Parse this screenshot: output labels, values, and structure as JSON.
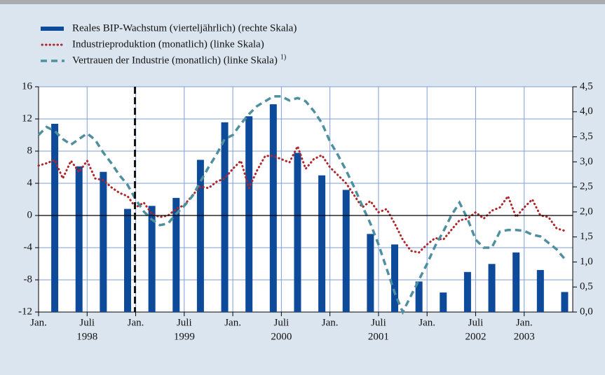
{
  "chart_data": {
    "type": "bar",
    "xlim": [
      "1998-01",
      "2003-07"
    ],
    "xticks": [
      {
        "value": "1998-01",
        "label": "Jan."
      },
      {
        "value": "1998-07",
        "label": "Juli"
      },
      {
        "value": "1999-01",
        "label": "Jan."
      },
      {
        "value": "1999-07",
        "label": "Juli"
      },
      {
        "value": "2000-01",
        "label": "Jan."
      },
      {
        "value": "2000-07",
        "label": "Juli"
      },
      {
        "value": "2001-01",
        "label": "Jan."
      },
      {
        "value": "2001-07",
        "label": "Juli"
      },
      {
        "value": "2002-01",
        "label": "Jan."
      },
      {
        "value": "2002-07",
        "label": "Juli"
      },
      {
        "value": "2003-01",
        "label": "Jan."
      }
    ],
    "x_year_labels": [
      {
        "value": "1998-07",
        "label": "1998"
      },
      {
        "value": "1999-07",
        "label": "1999"
      },
      {
        "value": "2000-07",
        "label": "2000"
      },
      {
        "value": "2001-07",
        "label": "2001"
      },
      {
        "value": "2002-07",
        "label": "2002"
      },
      {
        "value": "2003-01",
        "label": "2003"
      }
    ],
    "ylim": [
      -12,
      16
    ],
    "yticks": [
      -12,
      -8,
      -4,
      0,
      4,
      8,
      12,
      16
    ],
    "y2lim": [
      0,
      4.5
    ],
    "y2ticks": [
      {
        "value": 0,
        "label": "0,0"
      },
      {
        "value": 0.5,
        "label": "0,5"
      },
      {
        "value": 1,
        "label": "1,0"
      },
      {
        "value": 1.5,
        "label": "1,5"
      },
      {
        "value": 2,
        "label": "2,0"
      },
      {
        "value": 2.5,
        "label": "2,5"
      },
      {
        "value": 3,
        "label": "3,0"
      },
      {
        "value": 3.5,
        "label": "3,5"
      },
      {
        "value": 4,
        "label": "4,0"
      },
      {
        "value": 4.5,
        "label": "4,5"
      }
    ],
    "grid": true,
    "series": [
      {
        "name": "Reales BIP-Wachstum (vierteljährlich) (rechte Skala)",
        "type": "bar",
        "axis": "y2",
        "color": "#0d4a9a",
        "x": [
          "1998-Q1",
          "1998-Q2",
          "1998-Q3",
          "1998-Q4",
          "1999-Q1",
          "1999-Q2",
          "1999-Q3",
          "1999-Q4",
          "2000-Q1",
          "2000-Q2",
          "2000-Q3",
          "2000-Q4",
          "2001-Q1",
          "2001-Q2",
          "2001-Q3",
          "2001-Q4",
          "2002-Q1",
          "2002-Q2",
          "2002-Q3",
          "2002-Q4",
          "2003-Q1",
          "2003-Q2"
        ],
        "values": [
          3.76,
          2.91,
          2.8,
          2.06,
          2.12,
          2.28,
          3.04,
          3.79,
          3.91,
          4.15,
          3.18,
          2.73,
          2.44,
          1.56,
          1.35,
          0.61,
          0.39,
          0.8,
          0.96,
          1.19,
          0.84,
          0.4
        ]
      },
      {
        "name": "Industrieproduktion (monatlich) (linke Skala)",
        "type": "dotted",
        "color": "#b0262a",
        "x": [
          "1998-01",
          "1998-02",
          "1998-03",
          "1998-04",
          "1998-05",
          "1998-06",
          "1998-07",
          "1998-08",
          "1998-09",
          "1998-10",
          "1998-11",
          "1998-12",
          "1999-01",
          "1999-02",
          "1999-03",
          "1999-04",
          "1999-05",
          "1999-06",
          "1999-07",
          "1999-08",
          "1999-09",
          "1999-10",
          "1999-11",
          "1999-12",
          "2000-01",
          "2000-02",
          "2000-03",
          "2000-04",
          "2000-05",
          "2000-06",
          "2000-07",
          "2000-08",
          "2000-09",
          "2000-10",
          "2000-11",
          "2000-12",
          "2001-01",
          "2001-02",
          "2001-03",
          "2001-04",
          "2001-05",
          "2001-06",
          "2001-07",
          "2001-08",
          "2001-09",
          "2001-10",
          "2001-11",
          "2001-12",
          "2002-01",
          "2002-02",
          "2002-03",
          "2002-04",
          "2002-05",
          "2002-06",
          "2002-07",
          "2002-08",
          "2002-09",
          "2002-10",
          "2002-11",
          "2002-12",
          "2003-01",
          "2003-02",
          "2003-03",
          "2003-04",
          "2003-05",
          "2003-06"
        ],
        "values": [
          6.2,
          6.5,
          6.9,
          4.6,
          6.8,
          5.4,
          6.8,
          4.6,
          4.4,
          3.5,
          2.8,
          2.4,
          1.0,
          1.6,
          0.2,
          -0.2,
          0.0,
          0.8,
          1.3,
          2.5,
          3.6,
          3.4,
          4.2,
          4.6,
          5.8,
          6.8,
          3.4,
          5.6,
          7.4,
          7.4,
          7.0,
          6.6,
          8.6,
          5.8,
          7.0,
          7.5,
          6.0,
          5.0,
          4.0,
          2.5,
          1.0,
          1.8,
          0.4,
          0.8,
          -1.0,
          -3.0,
          -4.4,
          -4.6,
          -3.6,
          -2.8,
          -3.0,
          -1.8,
          -0.6,
          -0.4,
          0.4,
          -0.4,
          0.6,
          1.0,
          2.4,
          -0.2,
          1.0,
          2.0,
          0.0,
          -0.2,
          -1.6,
          -1.9
        ]
      },
      {
        "name": "Vertrauen der Industrie (monatlich) (linke Skala)",
        "footnote": "1)",
        "type": "dashed",
        "color": "#4e8fa0",
        "x": [
          "1998-01",
          "1998-02",
          "1998-03",
          "1998-04",
          "1998-05",
          "1998-06",
          "1998-07",
          "1998-08",
          "1998-09",
          "1998-10",
          "1998-11",
          "1998-12",
          "1999-01",
          "1999-02",
          "1999-03",
          "1999-04",
          "1999-05",
          "1999-06",
          "1999-07",
          "1999-08",
          "1999-09",
          "1999-10",
          "1999-11",
          "1999-12",
          "2000-01",
          "2000-02",
          "2000-03",
          "2000-04",
          "2000-05",
          "2000-06",
          "2000-07",
          "2000-08",
          "2000-09",
          "2000-10",
          "2000-11",
          "2000-12",
          "2001-01",
          "2001-02",
          "2001-03",
          "2001-04",
          "2001-05",
          "2001-06",
          "2001-07",
          "2001-08",
          "2001-09",
          "2001-10",
          "2001-11",
          "2001-12",
          "2002-01",
          "2002-02",
          "2002-03",
          "2002-04",
          "2002-05",
          "2002-06",
          "2002-07",
          "2002-08",
          "2002-09",
          "2002-10",
          "2002-11",
          "2002-12",
          "2003-01",
          "2003-02",
          "2003-03",
          "2003-04",
          "2003-05",
          "2003-06"
        ],
        "values": [
          10.0,
          11.0,
          10.5,
          9.5,
          8.8,
          9.5,
          10.2,
          9.4,
          7.8,
          6.5,
          5.0,
          3.8,
          2.0,
          0.5,
          -0.5,
          -1.2,
          -1.0,
          0.2,
          1.2,
          2.4,
          4.2,
          6.0,
          7.6,
          9.5,
          10.0,
          11.4,
          12.6,
          13.6,
          14.2,
          14.8,
          14.8,
          14.3,
          14.6,
          14.2,
          13.0,
          11.5,
          9.2,
          7.5,
          5.6,
          3.5,
          1.2,
          -1.0,
          -3.6,
          -6.6,
          -9.6,
          -12.0,
          -10.0,
          -8.0,
          -6.0,
          -3.8,
          -2.0,
          0.0,
          1.6,
          -0.4,
          -3.0,
          -4.0,
          -4.0,
          -2.0,
          -1.8,
          -1.8,
          -1.9,
          -2.4,
          -2.6,
          -3.4,
          -4.2,
          -5.4
        ]
      }
    ]
  }
}
